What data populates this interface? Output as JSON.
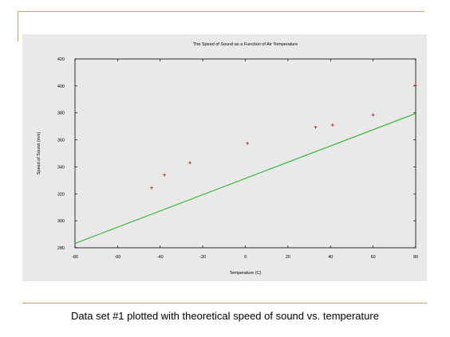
{
  "caption": "Data set #1 plotted with theoretical speed of sound vs. temperature",
  "colors": {
    "background": "#e9e9e9",
    "axes": "#000000",
    "line": "#2bb52b",
    "points": "#c0302c",
    "rule": "#c8a650"
  },
  "chart_data": {
    "type": "scatter",
    "title": "The Speed of Sound as a Function of Air Temperature",
    "xlabel": "Temperature (C)",
    "ylabel": "Speed of Sound (m/s)",
    "xlim": [
      -80,
      80
    ],
    "ylim": [
      280,
      420
    ],
    "xticks": [
      -80,
      -60,
      -40,
      -20,
      0,
      20,
      40,
      60,
      80
    ],
    "yticks": [
      280,
      300,
      320,
      340,
      360,
      380,
      400,
      420
    ],
    "grid": false,
    "series": [
      {
        "kind": "points",
        "marker": "+",
        "x": [
          -44,
          -38,
          -26,
          1,
          33,
          41,
          60,
          80
        ],
        "y": [
          324.5,
          334,
          343,
          357.5,
          369.5,
          371,
          378.5,
          400.5
        ]
      },
      {
        "kind": "line",
        "x": [
          -80,
          80
        ],
        "y": [
          283.2,
          379.6
        ]
      }
    ]
  }
}
